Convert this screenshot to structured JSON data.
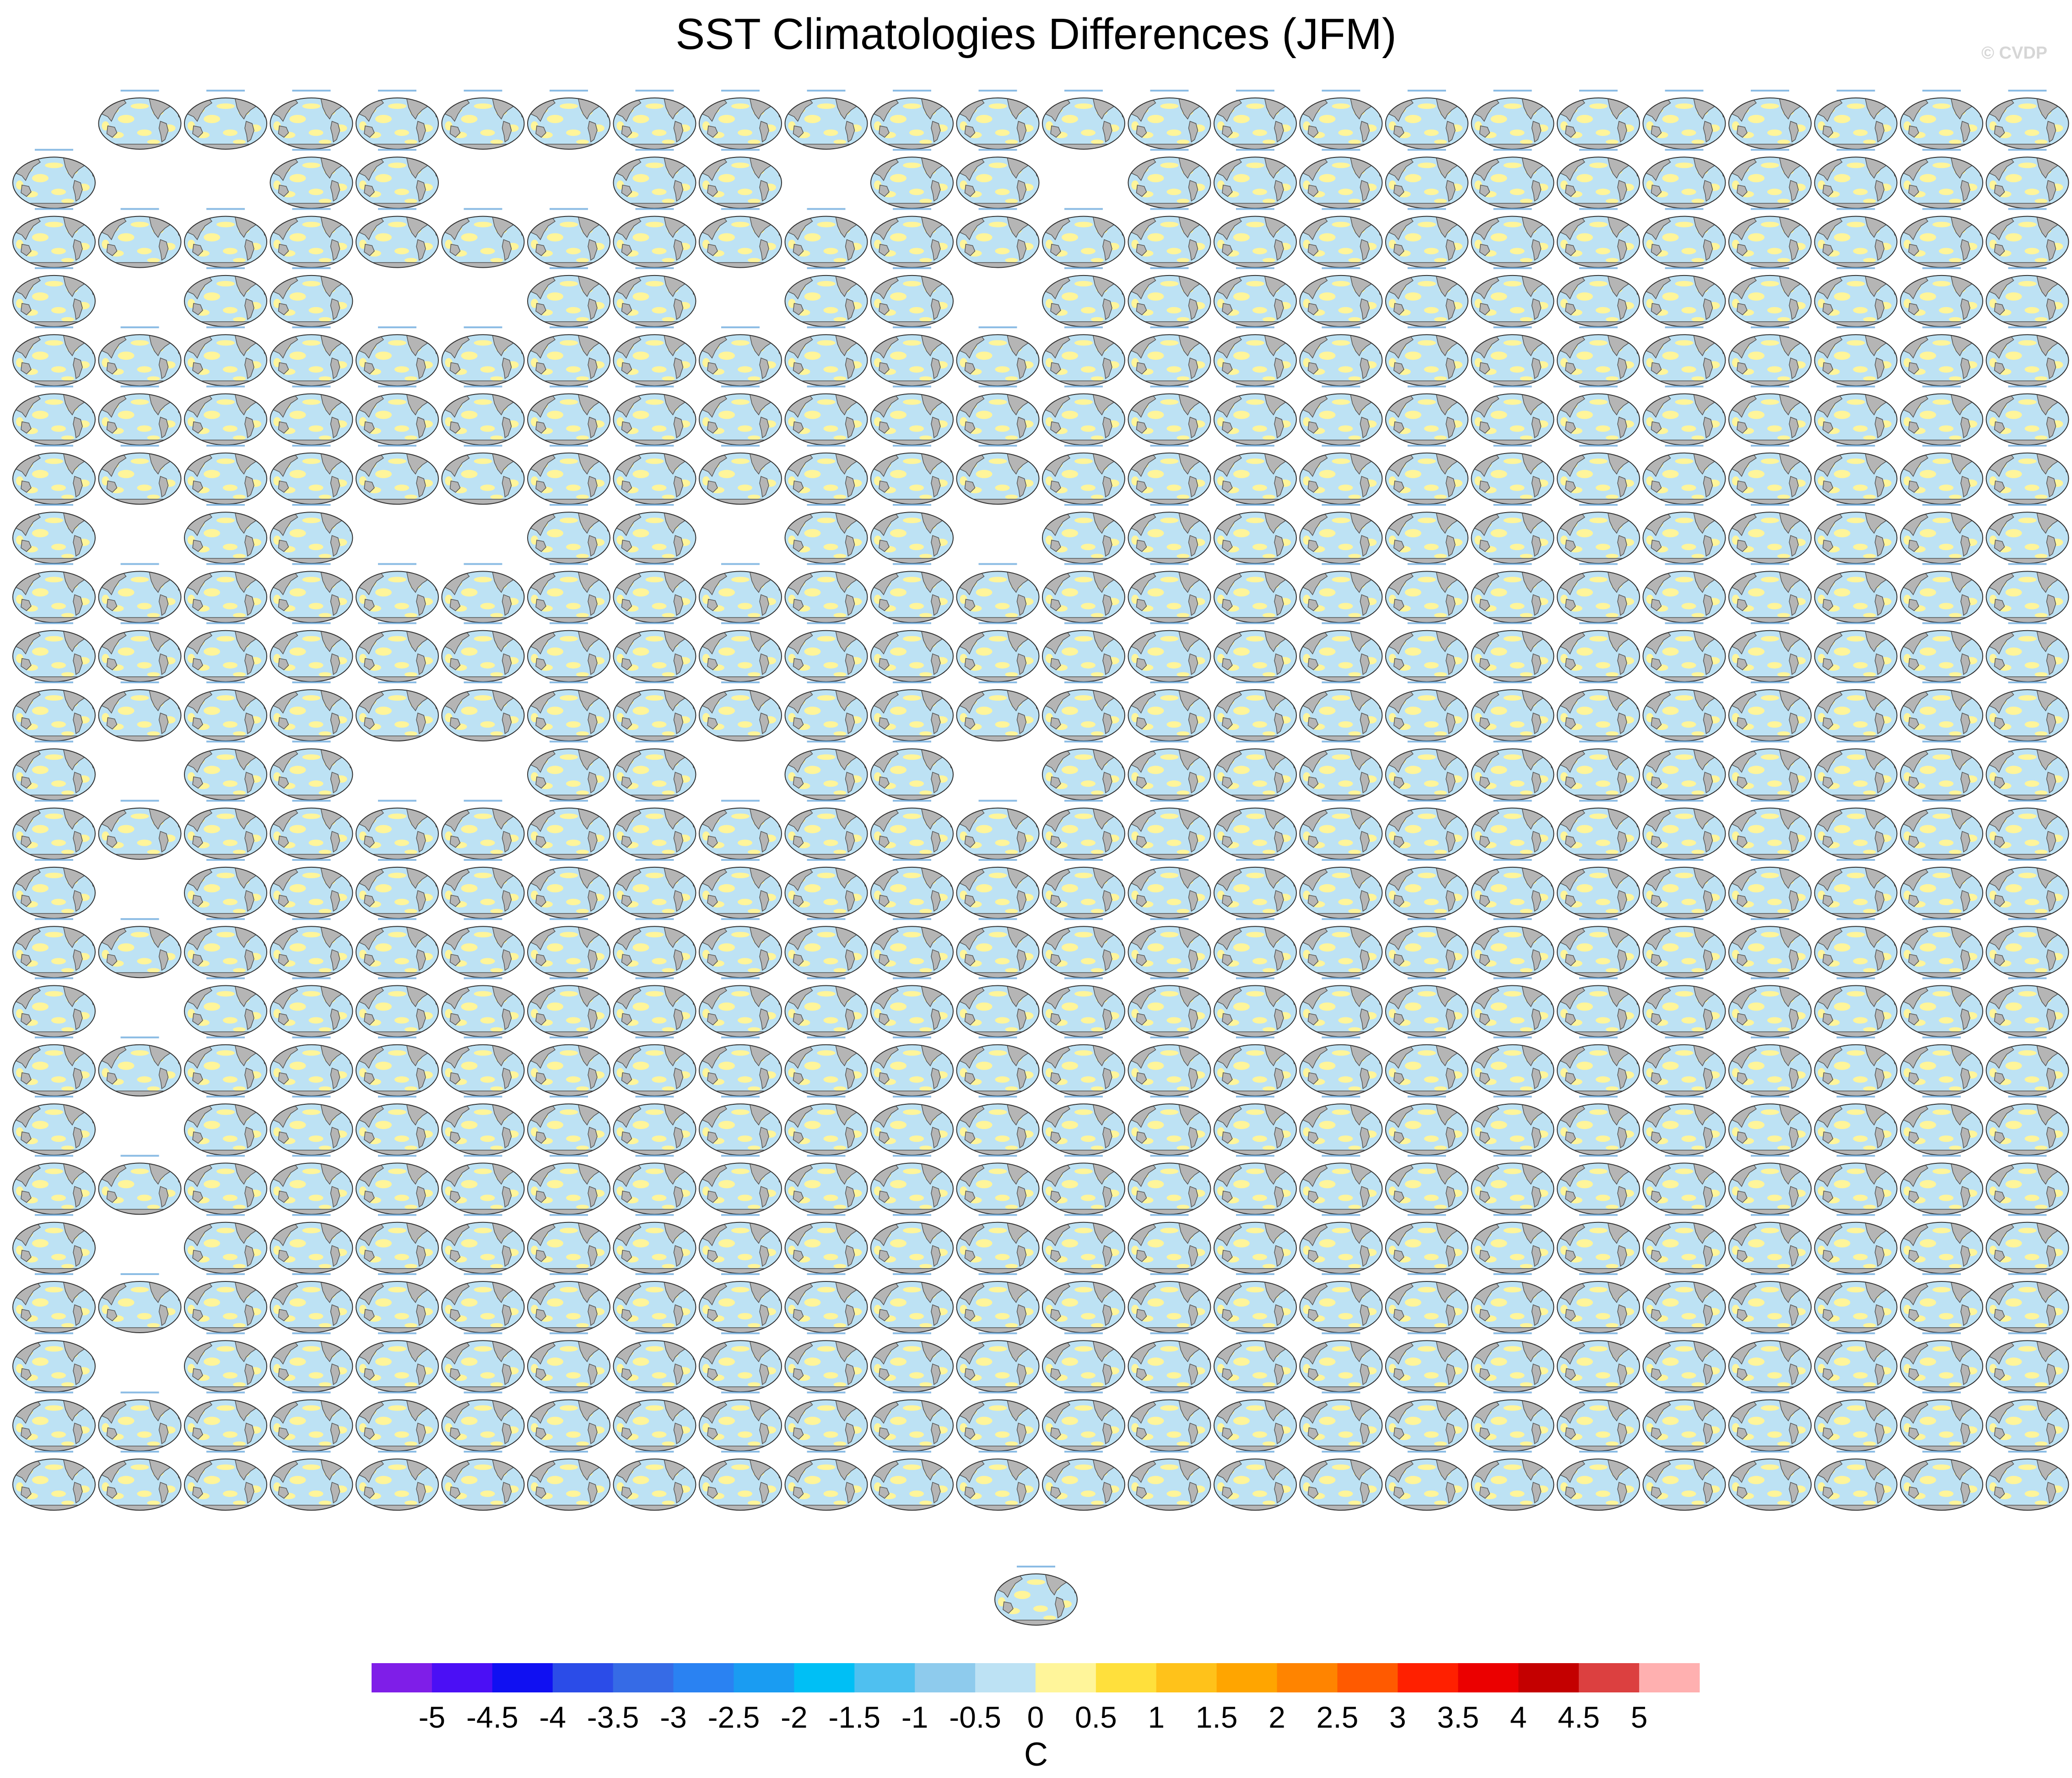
{
  "title": "SST Climatologies Differences (JFM)",
  "watermark": "© CVDP",
  "chart_data": {
    "type": "heatmap",
    "title": "SST Climatologies Differences (JFM)",
    "panel_layout": {
      "columns": 24,
      "rows": 24,
      "row_occupancy": [
        "011111111111111111111111",
        "100110011011011111111111",
        "111111111111111111111111",
        "101100110110111111111111",
        "111111111111111111111111",
        "111111111111111111111111",
        "111111111111111111111111",
        "101100110110111111111111",
        "111111111111111111111111",
        "111111111111111111111111",
        "111111111111111111111111",
        "101100110110111111111111",
        "111111111111111111111111",
        "101111111111111111111111",
        "111111111111111111111111",
        "101111111111111111111111",
        "111111111111111111111111",
        "101111111111111111111111",
        "111111111111111111111111",
        "101111111111111111111111",
        "111111111111111111111111",
        "101111111111111111111111",
        "111111111111111111111111",
        "111111111111111111111111"
      ],
      "extra_panel": "centered below grid"
    },
    "colorbar": {
      "label": "C",
      "levels": [
        "-5",
        "-4.5",
        "-4",
        "-3.5",
        "-3",
        "-2.5",
        "-2",
        "-1.5",
        "-1",
        "-0.5",
        "0",
        "0.5",
        "1",
        "1.5",
        "2",
        "2.5",
        "3",
        "3.5",
        "4",
        "4.5",
        "5"
      ],
      "colors": [
        "#7f1ee8",
        "#4b0ff5",
        "#1010f2",
        "#2b4ce8",
        "#366be6",
        "#2a82f2",
        "#1a9cf2",
        "#00bff5",
        "#4fc0f0",
        "#8ecbed",
        "#bde2f4",
        "#fff59a",
        "#ffe03c",
        "#ffc21a",
        "#ffa500",
        "#ff8400",
        "#ff5a00",
        "#ff2000",
        "#eb0000",
        "#c40000",
        "#dc4040",
        "#ffb0b0"
      ],
      "orientation": "horizontal",
      "position": "bottom"
    },
    "map_colors": {
      "ocean_negative": "#bde2f4",
      "ocean_positive": "#fff59a",
      "land": "#b5b5b5",
      "coast": "#555555"
    }
  }
}
